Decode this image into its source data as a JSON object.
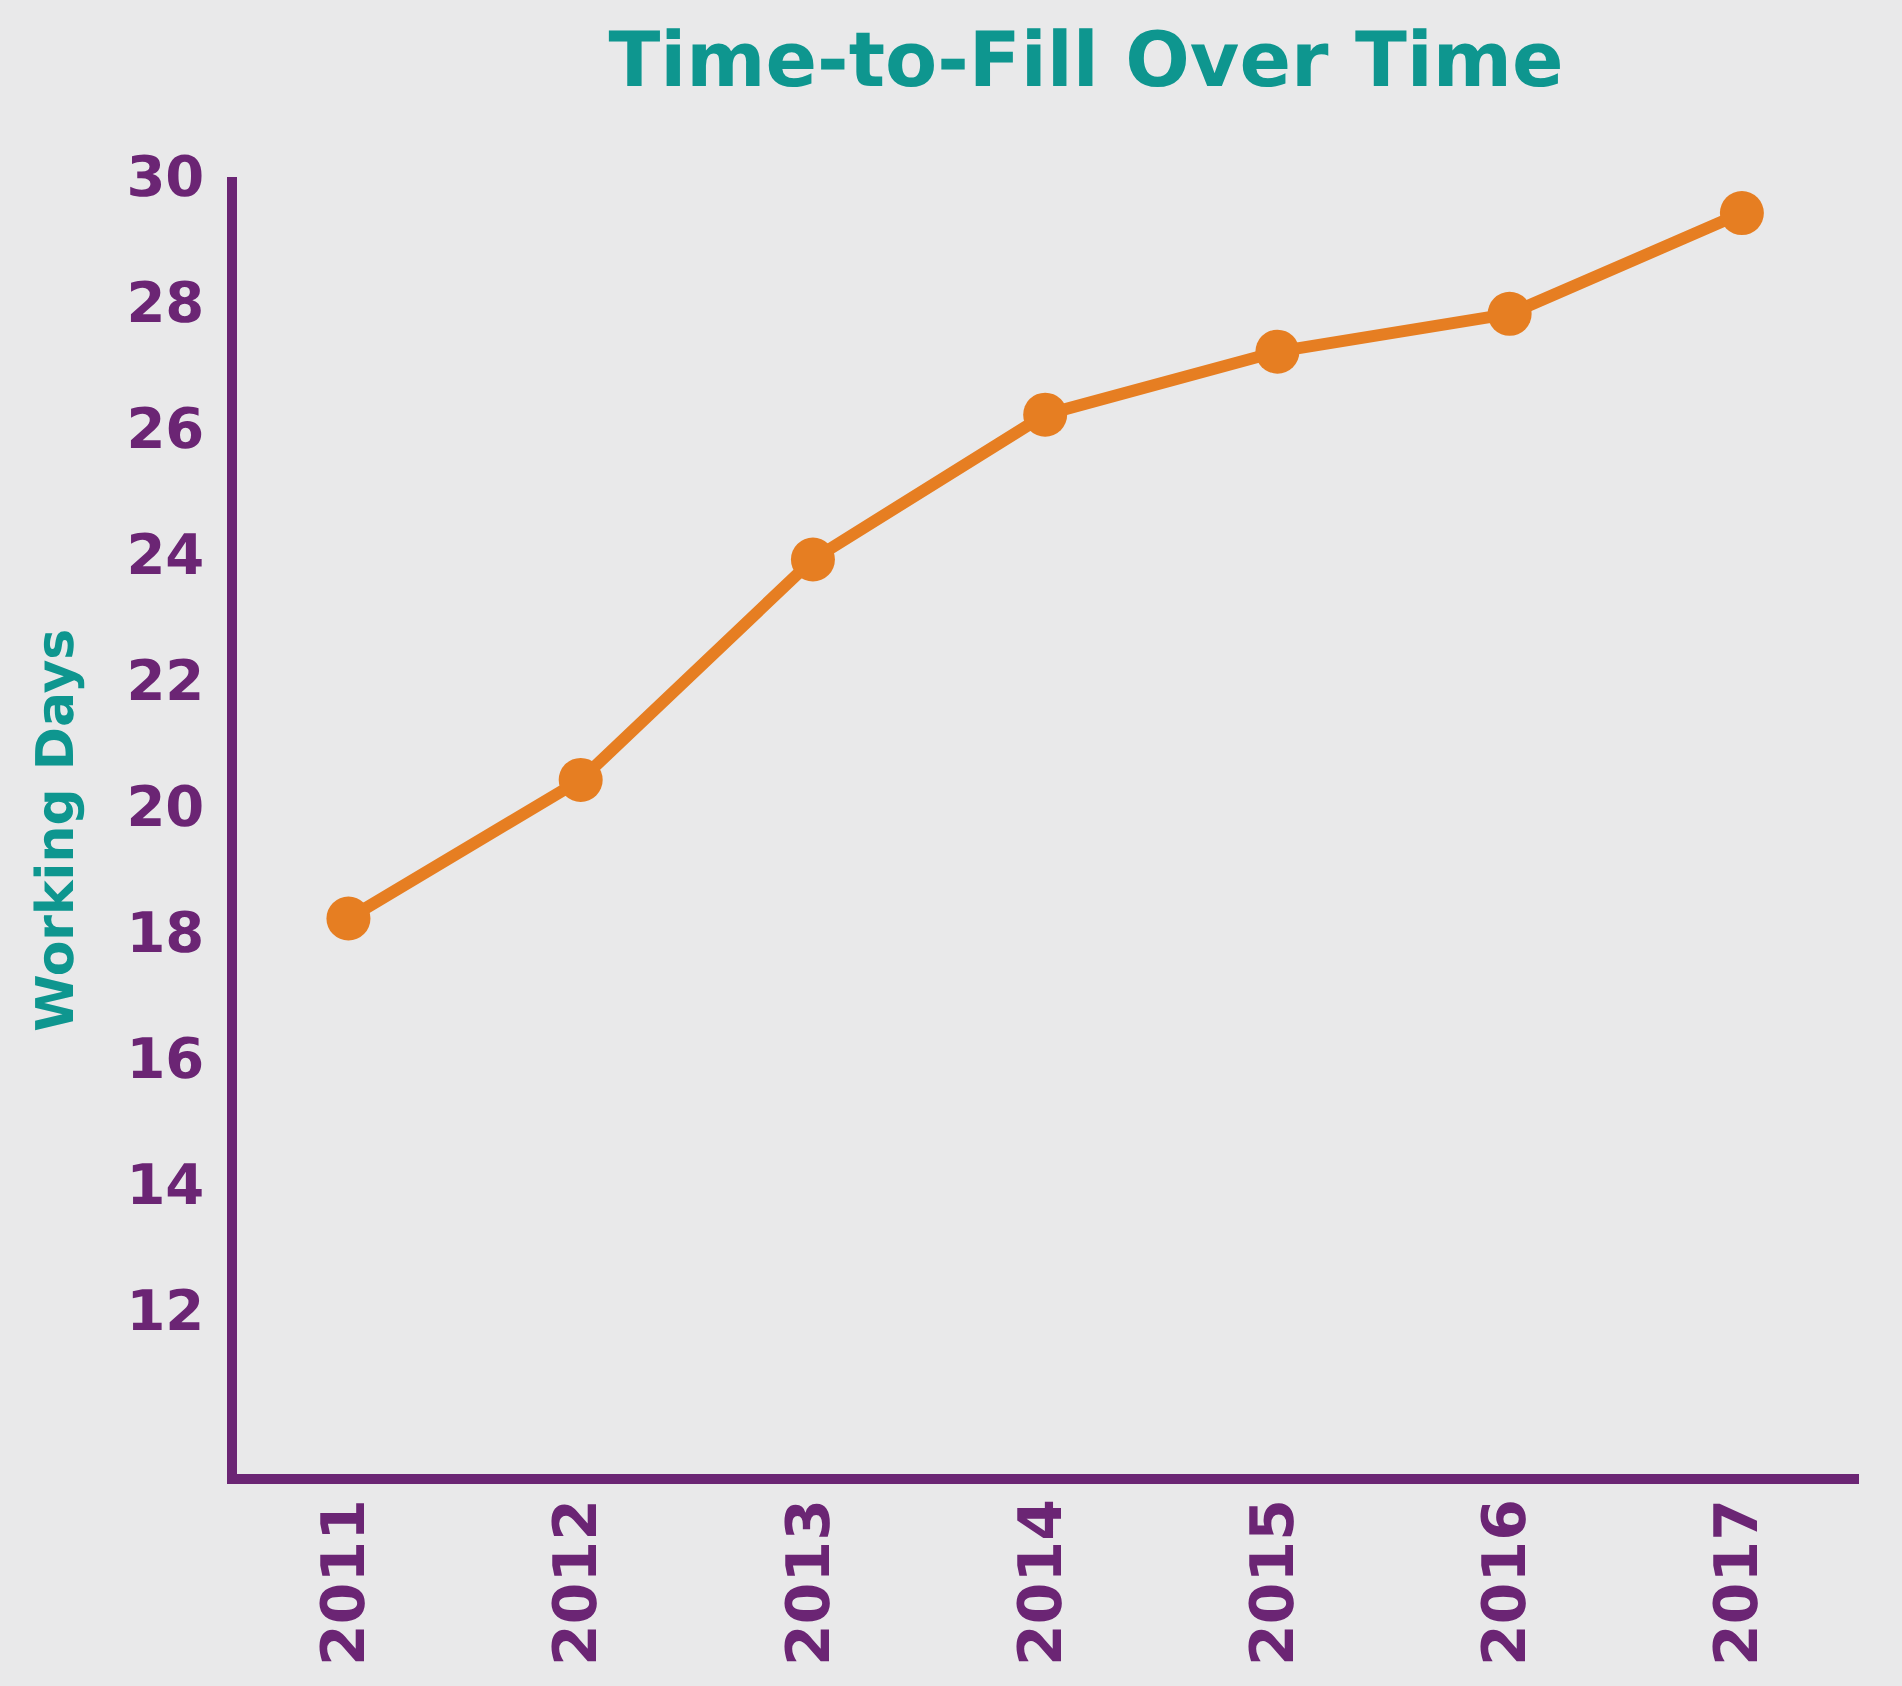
{
  "chart_data": {
    "type": "line",
    "title": "Time-to-Fill Over Time",
    "ylabel": "Working Days",
    "categories": [
      "2011",
      "2012",
      "2013",
      "2014",
      "2015",
      "2016",
      "2017"
    ],
    "series": [
      {
        "color": "#e67e22",
        "values": [
          18.3,
          20.5,
          24.0,
          26.3,
          27.3,
          27.9,
          29.5
        ]
      }
    ],
    "ylim": [
      9.4,
      30
    ],
    "yticks": [
      12,
      14,
      16,
      18,
      20,
      22,
      24,
      26,
      28,
      30
    ],
    "grid": false,
    "legend": false,
    "marker": "circle",
    "line_style": "solid"
  }
}
